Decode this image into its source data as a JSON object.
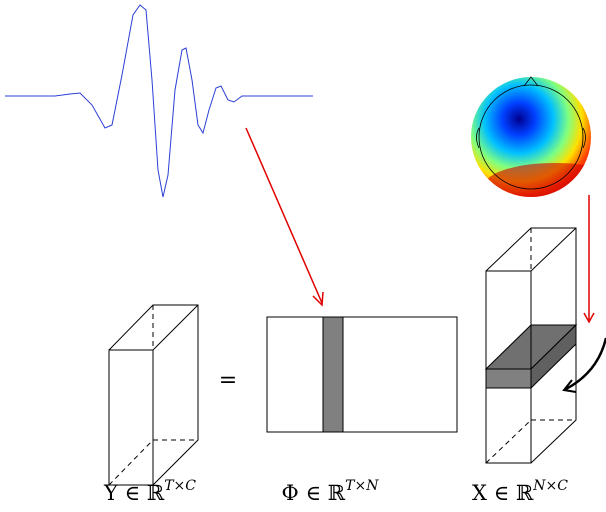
{
  "equals": "=",
  "labels": [
    {
      "base": "Y ∈ ℝ",
      "sup": "T×C"
    },
    {
      "base": "Φ ∈ ℝ",
      "sup": "T×N"
    },
    {
      "base": "X ∈ ℝ",
      "sup": "N×C"
    }
  ]
}
